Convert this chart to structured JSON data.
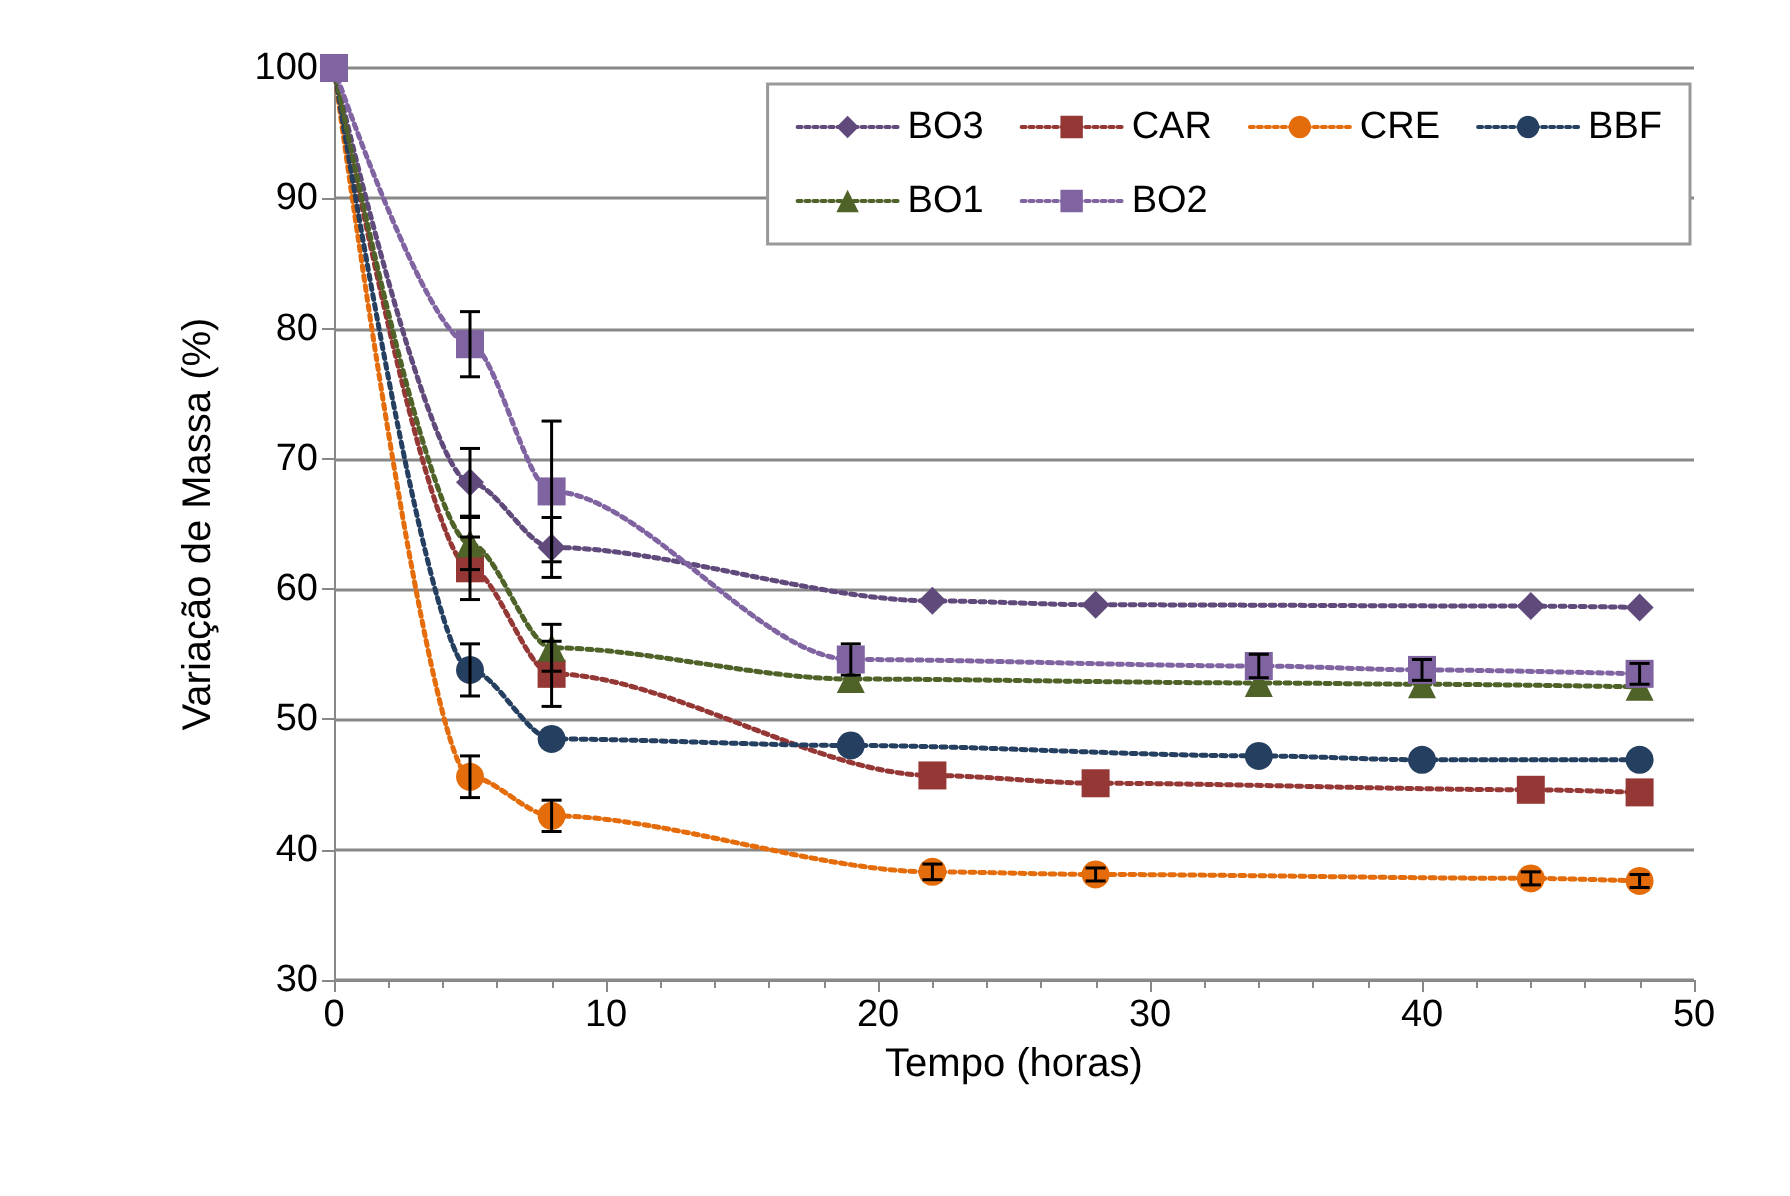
{
  "chart_data": {
    "type": "line",
    "xlabel": "Tempo (horas)",
    "ylabel": "Variação de Massa (%)",
    "xlim": [
      0,
      50
    ],
    "xticks": [
      0,
      10,
      20,
      30,
      40,
      50
    ],
    "ylim": [
      30,
      100
    ],
    "yticks": [
      30,
      40,
      50,
      60,
      70,
      80,
      90,
      100
    ],
    "grid": "y",
    "legend": "top right",
    "line_style": "dotted",
    "series": [
      {
        "name": "BO3",
        "color": "#604a7b",
        "marker": "diamond",
        "x": [
          0,
          5,
          8,
          22,
          28,
          44,
          48
        ],
        "values": [
          100,
          68.2,
          63.2,
          59.1,
          58.8,
          58.7,
          58.6
        ],
        "errors": [
          null,
          2.6,
          2.3,
          null,
          null,
          null,
          null
        ]
      },
      {
        "name": "CAR",
        "color": "#953735",
        "marker": "square",
        "x": [
          0,
          5,
          8,
          22,
          28,
          44,
          48
        ],
        "values": [
          100,
          61.6,
          53.5,
          45.7,
          45.1,
          44.6,
          44.4
        ],
        "errors": [
          null,
          2.4,
          2.5,
          null,
          null,
          null,
          null
        ]
      },
      {
        "name": "CRE",
        "color": "#e46c0a",
        "marker": "circle",
        "x": [
          0,
          5,
          8,
          22,
          28,
          44,
          48
        ],
        "values": [
          100,
          45.6,
          42.6,
          38.3,
          38.1,
          37.8,
          37.6
        ],
        "errors": [
          null,
          1.6,
          1.2,
          0.6,
          0.5,
          0.5,
          0.5
        ]
      },
      {
        "name": "BBF",
        "color": "#243f60",
        "marker": "circle",
        "x": [
          0,
          5,
          8,
          19,
          34,
          40,
          48
        ],
        "values": [
          100,
          53.8,
          48.5,
          48.0,
          47.2,
          46.9,
          46.9
        ],
        "errors": [
          null,
          2.0,
          null,
          null,
          null,
          null,
          null
        ]
      },
      {
        "name": "BO1",
        "color": "#4f6228",
        "marker": "triangle",
        "x": [
          0,
          5,
          8,
          19,
          34,
          40,
          48
        ],
        "values": [
          100,
          63.5,
          55.5,
          53.1,
          52.8,
          52.7,
          52.5
        ],
        "errors": [
          null,
          2.0,
          1.8,
          null,
          null,
          null,
          null
        ]
      },
      {
        "name": "BO2",
        "color": "#8064a2",
        "marker": "square",
        "x": [
          0,
          5,
          8,
          19,
          34,
          40,
          48
        ],
        "values": [
          100,
          78.8,
          67.5,
          54.6,
          54.1,
          53.8,
          53.5
        ],
        "errors": [
          null,
          2.5,
          5.4,
          1.2,
          0.9,
          0.8,
          0.8
        ]
      }
    ]
  }
}
